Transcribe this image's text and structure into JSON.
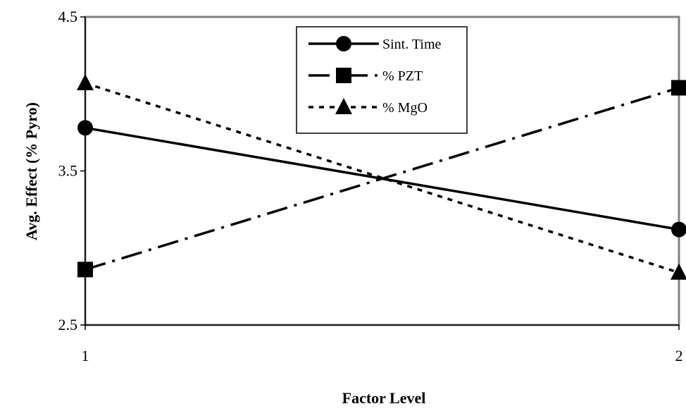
{
  "chart_data": {
    "type": "line",
    "x": [
      1,
      2
    ],
    "xlabel": "Factor Level",
    "ylabel": "Avg. Effect (% Pyro)",
    "xlim": [
      1,
      2
    ],
    "ylim": [
      2.5,
      4.5
    ],
    "x_ticks": [
      "1",
      "2"
    ],
    "y_ticks": [
      "2.5",
      "3.5",
      "4.5"
    ],
    "grid": false,
    "legend_position": "top-center",
    "series": [
      {
        "name": "Sint. Time",
        "values": [
          3.78,
          3.12
        ],
        "marker": "circle",
        "line_style": "solid"
      },
      {
        "name": "% PZT",
        "values": [
          2.86,
          4.04
        ],
        "marker": "square",
        "line_style": "dash-dot"
      },
      {
        "name": "% MgO",
        "values": [
          4.07,
          2.84
        ],
        "marker": "triangle",
        "line_style": "dotted"
      }
    ]
  }
}
